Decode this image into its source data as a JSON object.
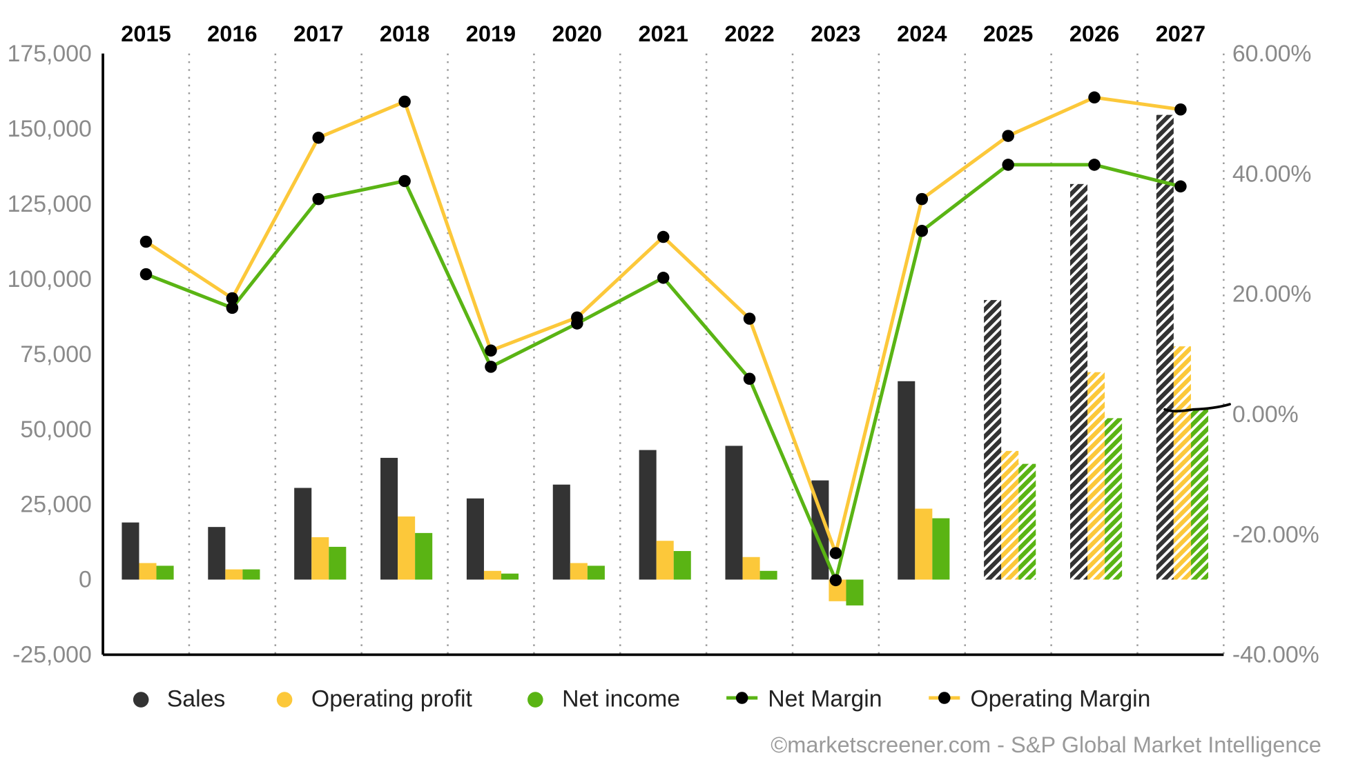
{
  "chart_data": {
    "type": "bar",
    "categories": [
      "2015",
      "2016",
      "2017",
      "2018",
      "2019",
      "2020",
      "2021",
      "2022",
      "2023",
      "2024",
      "2025",
      "2026",
      "2027"
    ],
    "forecast_categories": [
      "2025",
      "2026",
      "2027"
    ],
    "y_left": {
      "lim": [
        -25000,
        175000
      ],
      "ticks": [
        -25000,
        0,
        25000,
        50000,
        75000,
        100000,
        125000,
        150000,
        175000
      ],
      "tick_labels": [
        "-25,000",
        "0",
        "25,000",
        "50,000",
        "75,000",
        "100,000",
        "125,000",
        "150,000",
        "175,000"
      ]
    },
    "y_right": {
      "lim": [
        -40,
        60
      ],
      "ticks": [
        -40,
        -20,
        0,
        20,
        40,
        60
      ],
      "tick_labels": [
        "-40.00%",
        "-20.00%",
        "0.00%",
        "20.00%",
        "40.00%",
        "60.00%"
      ]
    },
    "grid": "vertical dotted",
    "legend_placement": "bottom",
    "series": [
      {
        "name": "Sales",
        "type": "bar",
        "axis": "left",
        "color": "#333333",
        "values": [
          19000,
          17500,
          30500,
          40500,
          27000,
          31600,
          43100,
          44500,
          33000,
          66000,
          93000,
          131600,
          154600
        ]
      },
      {
        "name": "Operating profit",
        "type": "bar",
        "axis": "left",
        "color": "#fcc83a",
        "values": [
          5500,
          3400,
          14100,
          21000,
          2900,
          5500,
          12900,
          7500,
          -7200,
          23600,
          42800,
          69000,
          77600
        ]
      },
      {
        "name": "Net income",
        "type": "bar",
        "axis": "left",
        "color": "#5ab414",
        "values": [
          4600,
          3400,
          10900,
          15500,
          2000,
          4600,
          9500,
          2900,
          -8600,
          20400,
          38500,
          53700,
          56600
        ]
      },
      {
        "name": "Net Margin",
        "type": "line",
        "axis": "right",
        "color": "#5ab414",
        "values": [
          23.3,
          17.7,
          35.8,
          38.8,
          7.9,
          15.1,
          22.7,
          5.9,
          -27.6,
          30.5,
          41.5,
          41.5,
          37.9
        ]
      },
      {
        "name": "Operating Margin",
        "type": "line",
        "axis": "right",
        "color": "#fcc83a",
        "values": [
          28.7,
          19.3,
          46.0,
          52.0,
          10.6,
          16.1,
          29.5,
          15.9,
          -23.1,
          35.8,
          46.3,
          52.7,
          50.7
        ]
      }
    ]
  },
  "copyright": "©marketscreener.com - S&P Global Market Intelligence"
}
